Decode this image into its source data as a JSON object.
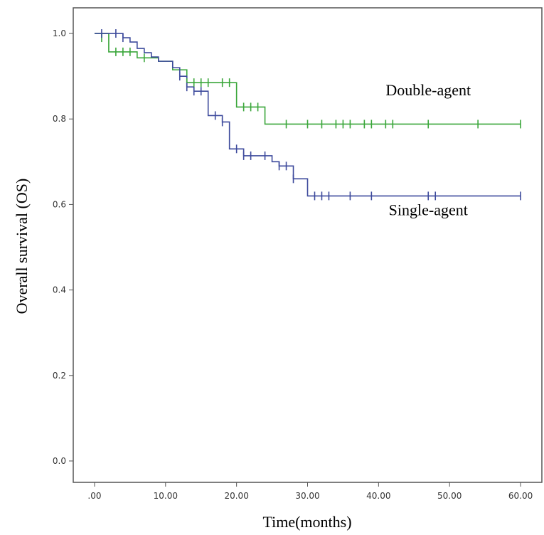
{
  "chart_data": {
    "type": "line",
    "subtype": "kaplan-meier",
    "xlabel": "Time(months)",
    "ylabel": "Overall survival (OS)",
    "xlim": [
      -3,
      63
    ],
    "ylim": [
      -0.05,
      1.06
    ],
    "x_ticks": [
      0,
      10,
      20,
      30,
      40,
      50,
      60
    ],
    "x_tick_labels": [
      ".00",
      "10.00",
      "20.00",
      "30.00",
      "40.00",
      "50.00",
      "60.00"
    ],
    "y_ticks": [
      0,
      0.2,
      0.4,
      0.6,
      0.8,
      1.0
    ],
    "y_tick_labels": [
      "0.0",
      "0.2",
      "0.4",
      "0.6",
      "0.8",
      "1.0"
    ],
    "grid": false,
    "series": [
      {
        "name": "Double-agent",
        "color": "#3aa63a",
        "steps": [
          [
            0,
            1.0
          ],
          [
            2,
            0.957
          ],
          [
            6,
            0.943
          ],
          [
            9,
            0.935
          ],
          [
            11,
            0.915
          ],
          [
            13,
            0.885
          ],
          [
            20,
            0.828
          ],
          [
            24,
            0.788
          ],
          [
            60,
            0.788
          ]
        ],
        "censored": [
          [
            1,
            0.99
          ],
          [
            3,
            0.957
          ],
          [
            4,
            0.957
          ],
          [
            5,
            0.957
          ],
          [
            7,
            0.943
          ],
          [
            13,
            0.885
          ],
          [
            14,
            0.885
          ],
          [
            15,
            0.885
          ],
          [
            16,
            0.885
          ],
          [
            18,
            0.885
          ],
          [
            19,
            0.885
          ],
          [
            21,
            0.828
          ],
          [
            22,
            0.828
          ],
          [
            23,
            0.828
          ],
          [
            27,
            0.788
          ],
          [
            30,
            0.788
          ],
          [
            32,
            0.788
          ],
          [
            34,
            0.788
          ],
          [
            35,
            0.788
          ],
          [
            36,
            0.788
          ],
          [
            38,
            0.788
          ],
          [
            39,
            0.788
          ],
          [
            41,
            0.788
          ],
          [
            42,
            0.788
          ],
          [
            47,
            0.788
          ],
          [
            54,
            0.788
          ],
          [
            60,
            0.788
          ]
        ]
      },
      {
        "name": "Single-agent",
        "color": "#3d4a9c",
        "steps": [
          [
            0,
            1.0
          ],
          [
            4,
            0.99
          ],
          [
            5,
            0.98
          ],
          [
            6,
            0.965
          ],
          [
            7,
            0.955
          ],
          [
            8,
            0.945
          ],
          [
            9,
            0.935
          ],
          [
            11,
            0.92
          ],
          [
            12,
            0.9
          ],
          [
            13,
            0.875
          ],
          [
            14,
            0.865
          ],
          [
            16,
            0.808
          ],
          [
            18,
            0.793
          ],
          [
            19,
            0.73
          ],
          [
            21,
            0.714
          ],
          [
            25,
            0.7
          ],
          [
            26,
            0.69
          ],
          [
            28,
            0.66
          ],
          [
            30,
            0.62
          ],
          [
            60,
            0.62
          ]
        ],
        "censored": [
          [
            1,
            1.0
          ],
          [
            3,
            1.0
          ],
          [
            4,
            0.99
          ],
          [
            12,
            0.9
          ],
          [
            13,
            0.875
          ],
          [
            14,
            0.865
          ],
          [
            15,
            0.865
          ],
          [
            17,
            0.808
          ],
          [
            18,
            0.793
          ],
          [
            20,
            0.73
          ],
          [
            21,
            0.714
          ],
          [
            22,
            0.714
          ],
          [
            24,
            0.714
          ],
          [
            26,
            0.69
          ],
          [
            27,
            0.69
          ],
          [
            28,
            0.66
          ],
          [
            31,
            0.62
          ],
          [
            32,
            0.62
          ],
          [
            33,
            0.62
          ],
          [
            36,
            0.62
          ],
          [
            39,
            0.62
          ],
          [
            47,
            0.62
          ],
          [
            48,
            0.62
          ],
          [
            60,
            0.62
          ]
        ]
      }
    ],
    "annotations": [
      {
        "text": "Double-agent",
        "x": 47,
        "y": 0.855
      },
      {
        "text": "Single-agent",
        "x": 47,
        "y": 0.575
      }
    ]
  }
}
